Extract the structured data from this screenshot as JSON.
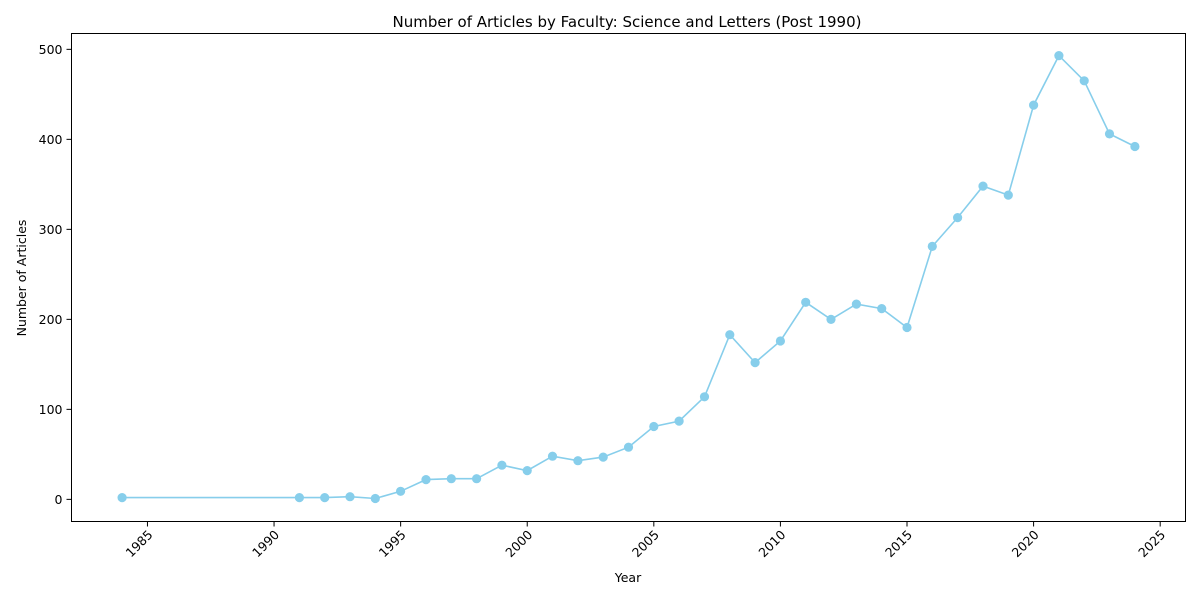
{
  "chart_data": {
    "type": "line",
    "title": "Number of Articles by Faculty: Science and Letters (Post 1990)",
    "xlabel": "Year",
    "ylabel": "Number of Articles",
    "x": [
      1984,
      1991,
      1992,
      1993,
      1994,
      1995,
      1996,
      1997,
      1998,
      1999,
      2000,
      2001,
      2002,
      2003,
      2004,
      2005,
      2006,
      2007,
      2008,
      2009,
      2010,
      2011,
      2012,
      2013,
      2014,
      2015,
      2016,
      2017,
      2018,
      2019,
      2020,
      2021,
      2022,
      2023,
      2024
    ],
    "y": [
      2,
      2,
      2,
      3,
      1,
      9,
      22,
      23,
      23,
      38,
      32,
      48,
      43,
      47,
      58,
      81,
      87,
      114,
      183,
      152,
      176,
      219,
      200,
      217,
      212,
      191,
      281,
      313,
      348,
      338,
      438,
      493,
      465,
      406,
      392
    ],
    "xticks": [
      "1985",
      "1990",
      "1995",
      "2000",
      "2005",
      "2010",
      "2015",
      "2020",
      "2025"
    ],
    "yticks": [
      "0",
      "100",
      "200",
      "300",
      "400",
      "500"
    ],
    "xlim": [
      1982,
      2026
    ],
    "ylim": [
      -24.6,
      517.6
    ],
    "color": "#87CEEB",
    "marker": "circle",
    "grid": false,
    "legend": false
  }
}
